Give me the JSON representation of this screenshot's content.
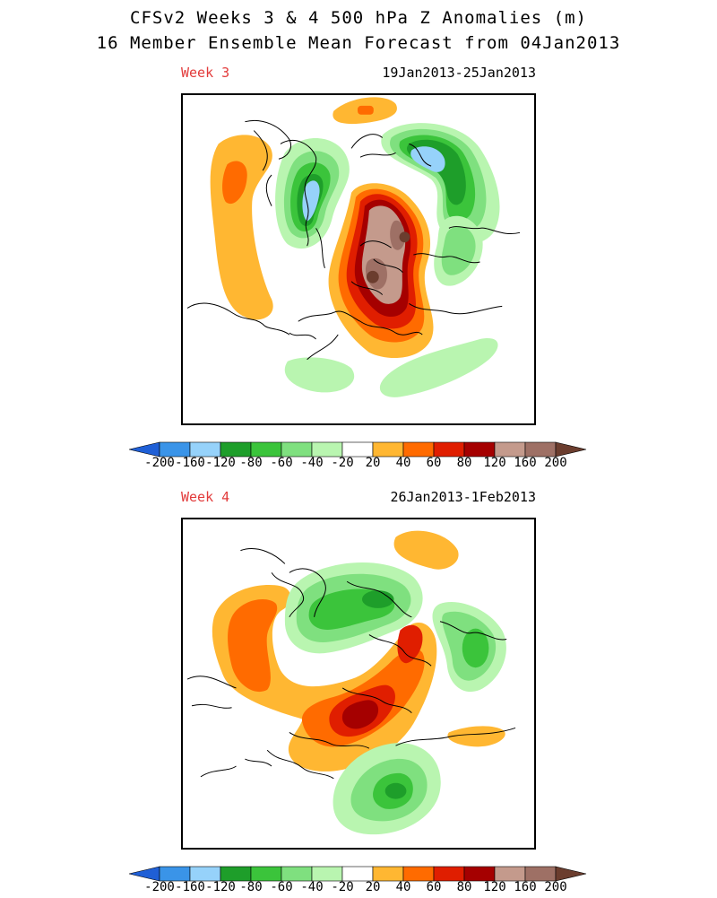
{
  "title": {
    "line1": "CFSv2 Weeks 3 & 4 500 hPa Z Anomalies (m)",
    "line2": "16 Member Ensemble Mean Forecast from 04Jan2013"
  },
  "panels": [
    {
      "label": "Week 3",
      "dates": "19Jan2013-25Jan2013"
    },
    {
      "label": "Week 4",
      "dates": "26Jan2013-1Feb2013"
    }
  ],
  "colorbar": {
    "ticks": [
      "-200",
      "-160",
      "-120",
      "-80",
      "-60",
      "-40",
      "-20",
      "20",
      "40",
      "60",
      "80",
      "120",
      "160",
      "200"
    ],
    "colors": [
      "#1f5fd6",
      "#3a94e8",
      "#96d2fa",
      "#1e9e2a",
      "#3bc43b",
      "#7fe07f",
      "#b9f5b0",
      "#ffffff",
      "#ffb732",
      "#ff6b00",
      "#e01e00",
      "#a50000",
      "#c49a8c",
      "#9e7065",
      "#6b3d2e"
    ]
  }
}
